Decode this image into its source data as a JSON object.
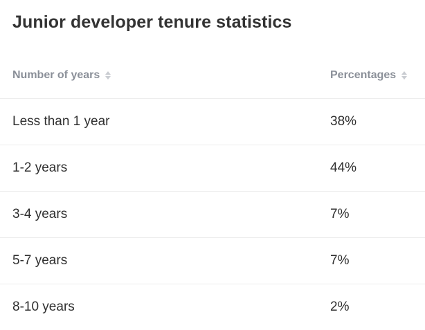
{
  "title": "Junior developer tenure statistics",
  "table": {
    "headers": [
      "Number of years",
      "Percentages"
    ],
    "rows": [
      [
        "Less than 1 year",
        "38%"
      ],
      [
        "1-2 years",
        "44%"
      ],
      [
        "3-4 years",
        "7%"
      ],
      [
        "5-7 years",
        "7%"
      ],
      [
        "8-10 years",
        "2%"
      ]
    ]
  },
  "colors": {
    "title": "#333333",
    "header_text": "#8a8f98",
    "body_text": "#2f2f2f",
    "divider": "#ececec",
    "sort_icon": "#c9ccd1"
  },
  "icons": {
    "sort": "sort-arrows-icon"
  }
}
